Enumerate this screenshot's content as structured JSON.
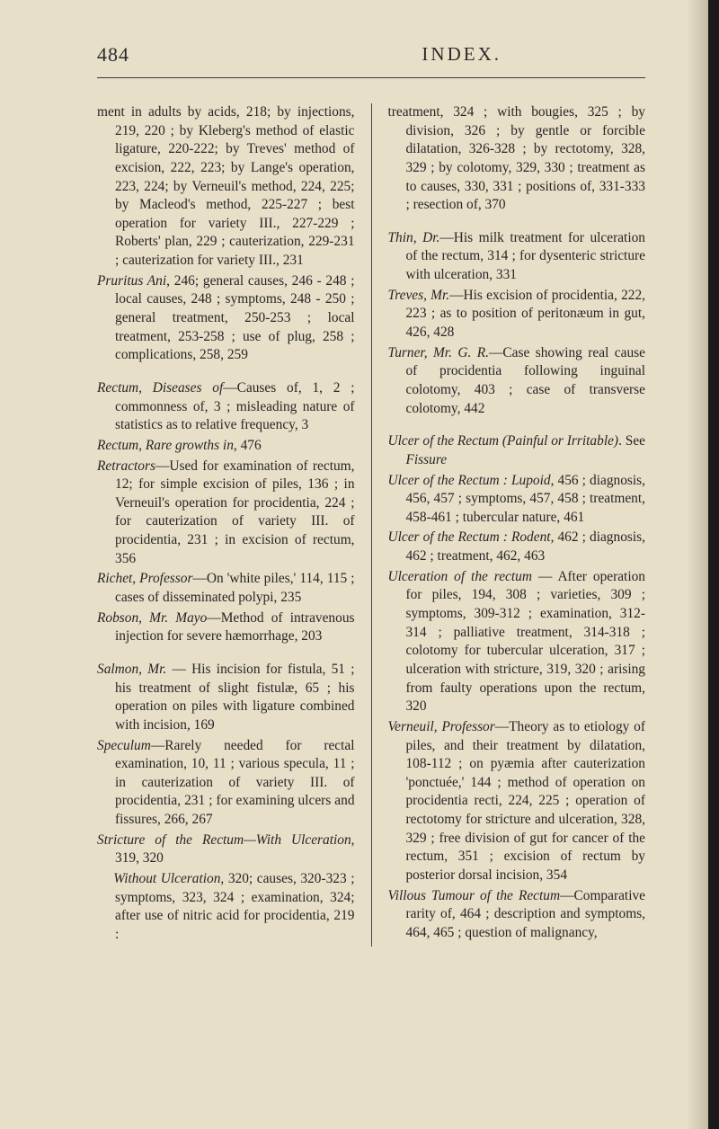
{
  "page_number": "484",
  "header": "INDEX.",
  "background_color": "#e8dfc8",
  "text_color": "#262626",
  "font_family": "Times New Roman",
  "left_entries": [
    "ment in adults by acids, 218; by injections, 219, 220 ; by Kleberg's method of elastic ligature, 220-222; by Treves' method of excision, 222, 223; by Lange's operation, 223, 224; by Verneuil's method, 224, 225; by Macleod's method, 225-227 ; best operation for variety III., 227-229 ; Roberts' plan, 229 ; cauterization, 229-231 ; cauterization for variety III., 231",
    "<em>Pruritus Ani</em>, 246; general causes, 246 - 248 ; local causes, 248 ; symptoms, 248 - 250 ; general treatment, 250-253 ; local treatment, 253-258 ; use of plug, 258 ; complications, 258, 259",
    "",
    "<em>Rectum, Diseases of</em>—Causes of, 1, 2 ; commonness of, 3 ; misleading nature of statistics as to relative frequency, 3",
    "<em>Rectum, Rare growths in</em>, 476",
    "<em>Retractors</em>—Used for examination of rectum, 12; for simple excision of piles, 136 ; in Verneuil's operation for procidentia, 224 ; for cauterization of variety III. of procidentia, 231 ; in excision of rectum, 356",
    "<em>Richet, Professor</em>—On 'white piles,' 114, 115 ; cases of disseminated polypi, 235",
    "<em>Robson, Mr. Mayo</em>—Method of intravenous injection for severe hæmorrhage, 203",
    "",
    "<em>Salmon, Mr.</em> — His incision for fistula, 51 ; his treatment of slight fistulæ, 65 ; his operation on piles with ligature combined with incision, 169",
    "<em>Speculum</em>—Rarely needed for rectal examination, 10, 11 ; various specula, 11 ; in cauterization of variety III. of procidentia, 231 ; for examining ulcers and fissures, 266, 267",
    "<em>Stricture of the Rectum—With Ulceration</em>, 319, 320",
    "&nbsp;&nbsp;&nbsp;&nbsp;<em>Without Ulceration</em>, 320; causes, 320-323 ; symptoms, 323, 324 ; examination, 324; after use of nitric acid for procidentia, 219 :"
  ],
  "right_entries": [
    "treatment, 324 ; with bougies, 325 ; by division, 326 ; by gentle or forcible dilatation, 326-328 ; by rectotomy, 328, 329 ; by colotomy, 329, 330 ; treatment as to causes, 330, 331 ; positions of, 331-333 ; resection of, 370",
    "",
    "<em>Thin, Dr.</em>—His milk treatment for ulceration of the rectum, 314 ; for dysenteric stricture with ulceration, 331",
    "<em>Treves, Mr.</em>—His excision of procidentia, 222, 223 ; as to position of peritonæum in gut, 426, 428",
    "<em>Turner, Mr. G. R.</em>—Case showing real cause of procidentia following inguinal colotomy, 403 ; case of transverse colotomy, 442",
    "",
    "<em>Ulcer of the Rectum (Painful or Irritable)</em>. See <em>Fissure</em>",
    "<em>Ulcer of the Rectum : Lupoid</em>, 456 ; diagnosis, 456, 457 ; symptoms, 457, 458 ; treatment, 458-461 ; tubercular nature, 461",
    "<em>Ulcer of the Rectum : Rodent</em>, 462 ; diagnosis, 462 ; treatment, 462, 463",
    "<em>Ulceration of the rectum</em> — After operation for piles, 194, 308 ; varieties, 309 ; symptoms, 309-312 ; examination, 312-314 ; palliative treatment, 314-318 ; colotomy for tubercular ulceration, 317 ; ulceration with stricture, 319, 320 ; arising from faulty operations upon the rectum, 320",
    "<em>Verneuil, Professor</em>—Theory as to etiology of piles, and their treatment by dilatation, 108-112 ; on pyæmia after cauterization 'ponctuée,' 144 ; method of operation on procidentia recti, 224, 225 ; operation of rectotomy for stricture and ulceration, 328, 329 ; free division of gut for cancer of the rectum, 351 ; excision of rectum by posterior dorsal incision, 354",
    "<em>Villous Tumour of the Rectum</em>—Comparative rarity of, 464 ; description and symptoms, 464, 465 ; question of malignancy,"
  ]
}
